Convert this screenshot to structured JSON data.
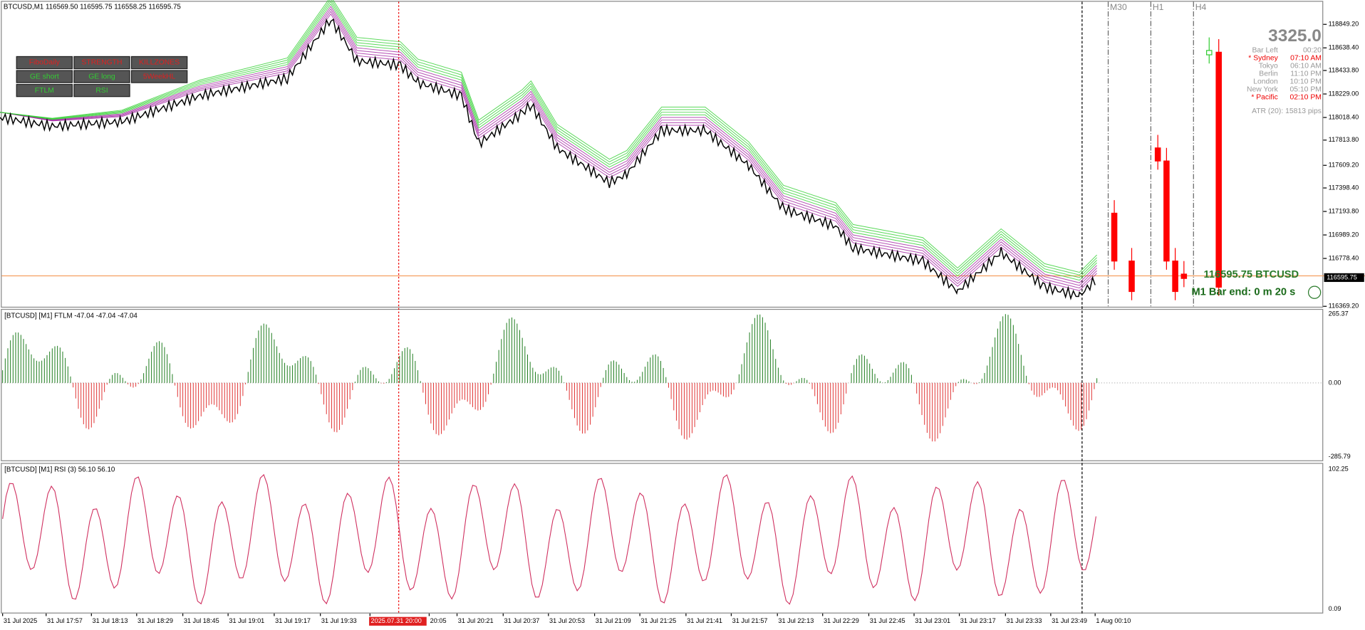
{
  "header": {
    "symbol_info": "BTCUSD,M1  116569.50 116595.75 116558.25 116595.75"
  },
  "buttons": [
    [
      "FiboDaily",
      "STRENGTH",
      "KILLZONES"
    ],
    [
      "GE short",
      "GE long",
      "5WeekHL"
    ],
    [
      "FTLM",
      "RSI"
    ]
  ],
  "price_axis": [
    "118849.20",
    "118638.40",
    "118433.80",
    "118229.00",
    "118018.40",
    "117813.80",
    "117609.20",
    "117398.40",
    "117193.80",
    "116989.20",
    "116778.40",
    "116369.20"
  ],
  "current_price": "116595.75",
  "timeframes": [
    "M30",
    "H1",
    "H4"
  ],
  "info_panel": {
    "range": "3325.0",
    "bar_left": "Bar Left",
    "bar_left_value": "00:20",
    "sessions": [
      [
        "* Sydney",
        "07:10 AM"
      ],
      [
        "Tokyo",
        "06:10 AM"
      ],
      [
        "Berlin",
        "11:10 PM"
      ],
      [
        "London",
        "10:10 PM"
      ],
      [
        "New York",
        "05:10 PM"
      ],
      [
        "* Pacific",
        "02:10 PM"
      ]
    ],
    "atr": "ATR (20): 15813 pips"
  },
  "price_label": "116595.75  BTCUSD",
  "bar_end": "M1 Bar end: 0 m 20 s",
  "ftlm_panel": {
    "label": "[BTCUSD] [M1] FTLM -47.04 -47.04 -47.04",
    "axis": [
      "265.37",
      "0.00",
      "-285.79"
    ]
  },
  "rsi_panel": {
    "label": "[BTCUSD] [M1] RSI (3) 56.10 56.10",
    "axis": [
      "102.25",
      "0.09"
    ]
  },
  "time_axis": [
    "31 Jul 2025",
    "31 Jul 17:57",
    "31 Jul 18:13",
    "31 Jul 18:29",
    "31 Jul 18:45",
    "31 Jul 19:01",
    "31 Jul 19:17",
    "31 Jul 19:33",
    "2025.07.31 20:00",
    "20:05",
    "31 Jul 20:21",
    "31 Jul 20:37",
    "31 Jul 20:53",
    "31 Jul 21:09",
    "31 Jul 21:25",
    "31 Jul 21:41",
    "31 Jul 21:57",
    "31 Jul 22:13",
    "31 Jul 22:29",
    "31 Jul 22:45",
    "31 Jul 23:01",
    "31 Jul 23:17",
    "31 Jul 23:33",
    "31 Jul 23:49",
    "1 Aug 00:10"
  ]
}
